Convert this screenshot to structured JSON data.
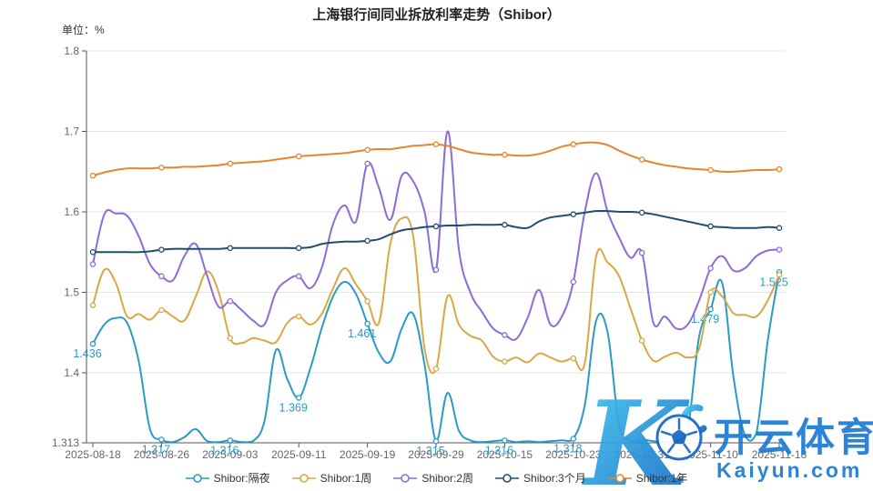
{
  "header": {
    "title": "上海银行间同业拆放利率走势（Shibor）",
    "unit_label": "单位：%"
  },
  "watermark": {
    "logo_letter": "K",
    "brand_cn": "开云体育",
    "brand_url": "Kaiyun.com",
    "color": "#1b7ad6",
    "gradient": [
      "#41c9f1",
      "#1565c5"
    ]
  },
  "chart_data": {
    "type": "line",
    "title": "上海银行间同业拆放利率走势（Shibor）",
    "ylabel": "单位：%",
    "ylim": [
      1.313,
      1.8
    ],
    "y_ticks": [
      "1.313",
      "1.4",
      "1.5",
      "1.6",
      "1.7",
      "1.8"
    ],
    "grid": true,
    "legend_position": "bottom",
    "tick_interval": 6,
    "x_tick_labels": [
      "2025-08-18",
      "2025-08-26",
      "2025-09-03",
      "2025-09-11",
      "2025-09-19",
      "2025-09-29",
      "2025-10-15",
      "2025-10-23",
      "2025-10-31",
      "2025-11-10",
      "2025-11-18"
    ],
    "colors": {
      "grid": "#e3e3e3",
      "axis": "#555555",
      "tick_text": "#666666"
    },
    "series": [
      {
        "name": "Shibor:隔夜",
        "color": "#2a9bc5",
        "values": [
          1.436,
          1.46,
          1.468,
          1.462,
          1.415,
          1.33,
          1.317,
          1.314,
          1.32,
          1.33,
          1.315,
          1.314,
          1.316,
          1.314,
          1.315,
          1.34,
          1.428,
          1.392,
          1.369,
          1.405,
          1.455,
          1.495,
          1.513,
          1.498,
          1.461,
          1.425,
          1.414,
          1.455,
          1.473,
          1.41,
          1.315,
          1.375,
          1.328,
          1.316,
          1.314,
          1.315,
          1.316,
          1.314,
          1.315,
          1.314,
          1.315,
          1.316,
          1.318,
          1.36,
          1.465,
          1.45,
          1.335,
          1.316,
          1.317,
          1.315,
          1.314,
          1.315,
          1.33,
          1.445,
          1.479,
          1.512,
          1.395,
          1.322,
          1.325,
          1.44,
          1.525
        ],
        "point_labels": {
          "0": "1.436",
          "6": "1.317",
          "12": "1.316",
          "18": "1.369",
          "24": "1.461",
          "30": "1.315",
          "36": "1.316",
          "42": "1.318",
          "54": "1.479",
          "60": "1.525"
        }
      },
      {
        "name": "Shibor:1周",
        "color": "#d9a845",
        "values": [
          1.484,
          1.528,
          1.512,
          1.47,
          1.473,
          1.466,
          1.478,
          1.47,
          1.465,
          1.495,
          1.526,
          1.5,
          1.443,
          1.437,
          1.443,
          1.44,
          1.438,
          1.462,
          1.47,
          1.46,
          1.473,
          1.505,
          1.53,
          1.51,
          1.489,
          1.462,
          1.56,
          1.592,
          1.57,
          1.43,
          1.405,
          1.495,
          1.46,
          1.446,
          1.44,
          1.42,
          1.414,
          1.419,
          1.413,
          1.424,
          1.419,
          1.414,
          1.418,
          1.412,
          1.545,
          1.537,
          1.52,
          1.48,
          1.44,
          1.415,
          1.42,
          1.425,
          1.419,
          1.43,
          1.5,
          1.495,
          1.474,
          1.472,
          1.47,
          1.49,
          1.522
        ]
      },
      {
        "name": "Shibor:2周",
        "color": "#8f6bd3",
        "values": [
          1.535,
          1.597,
          1.598,
          1.595,
          1.57,
          1.535,
          1.52,
          1.515,
          1.545,
          1.56,
          1.52,
          1.482,
          1.489,
          1.478,
          1.465,
          1.46,
          1.5,
          1.515,
          1.52,
          1.505,
          1.53,
          1.585,
          1.608,
          1.588,
          1.66,
          1.63,
          1.59,
          1.645,
          1.638,
          1.6,
          1.528,
          1.7,
          1.553,
          1.5,
          1.476,
          1.455,
          1.447,
          1.442,
          1.468,
          1.503,
          1.46,
          1.47,
          1.513,
          1.6,
          1.648,
          1.6,
          1.568,
          1.543,
          1.549,
          1.462,
          1.47,
          1.455,
          1.46,
          1.49,
          1.53,
          1.545,
          1.527,
          1.53,
          1.545,
          1.552,
          1.553
        ]
      },
      {
        "name": "Shibor:3个月",
        "color": "#1f4e6e",
        "values": [
          1.55,
          1.55,
          1.55,
          1.55,
          1.55,
          1.551,
          1.553,
          1.554,
          1.554,
          1.554,
          1.554,
          1.554,
          1.555,
          1.555,
          1.555,
          1.555,
          1.555,
          1.555,
          1.555,
          1.556,
          1.56,
          1.562,
          1.563,
          1.563,
          1.564,
          1.566,
          1.572,
          1.577,
          1.579,
          1.581,
          1.582,
          1.583,
          1.583,
          1.584,
          1.584,
          1.584,
          1.584,
          1.581,
          1.58,
          1.588,
          1.593,
          1.595,
          1.597,
          1.599,
          1.601,
          1.601,
          1.6,
          1.6,
          1.599,
          1.597,
          1.594,
          1.591,
          1.588,
          1.585,
          1.582,
          1.581,
          1.58,
          1.58,
          1.58,
          1.581,
          1.58
        ]
      },
      {
        "name": "Shibor:1年",
        "color": "#e6852f",
        "values": [
          1.645,
          1.649,
          1.652,
          1.654,
          1.654,
          1.654,
          1.655,
          1.655,
          1.656,
          1.656,
          1.657,
          1.658,
          1.66,
          1.661,
          1.662,
          1.663,
          1.665,
          1.667,
          1.669,
          1.67,
          1.671,
          1.672,
          1.673,
          1.675,
          1.677,
          1.678,
          1.678,
          1.68,
          1.682,
          1.683,
          1.684,
          1.682,
          1.678,
          1.674,
          1.672,
          1.671,
          1.671,
          1.67,
          1.67,
          1.672,
          1.676,
          1.681,
          1.684,
          1.686,
          1.686,
          1.683,
          1.676,
          1.67,
          1.665,
          1.661,
          1.658,
          1.656,
          1.654,
          1.653,
          1.652,
          1.65,
          1.65,
          1.651,
          1.652,
          1.652,
          1.653
        ]
      }
    ]
  }
}
